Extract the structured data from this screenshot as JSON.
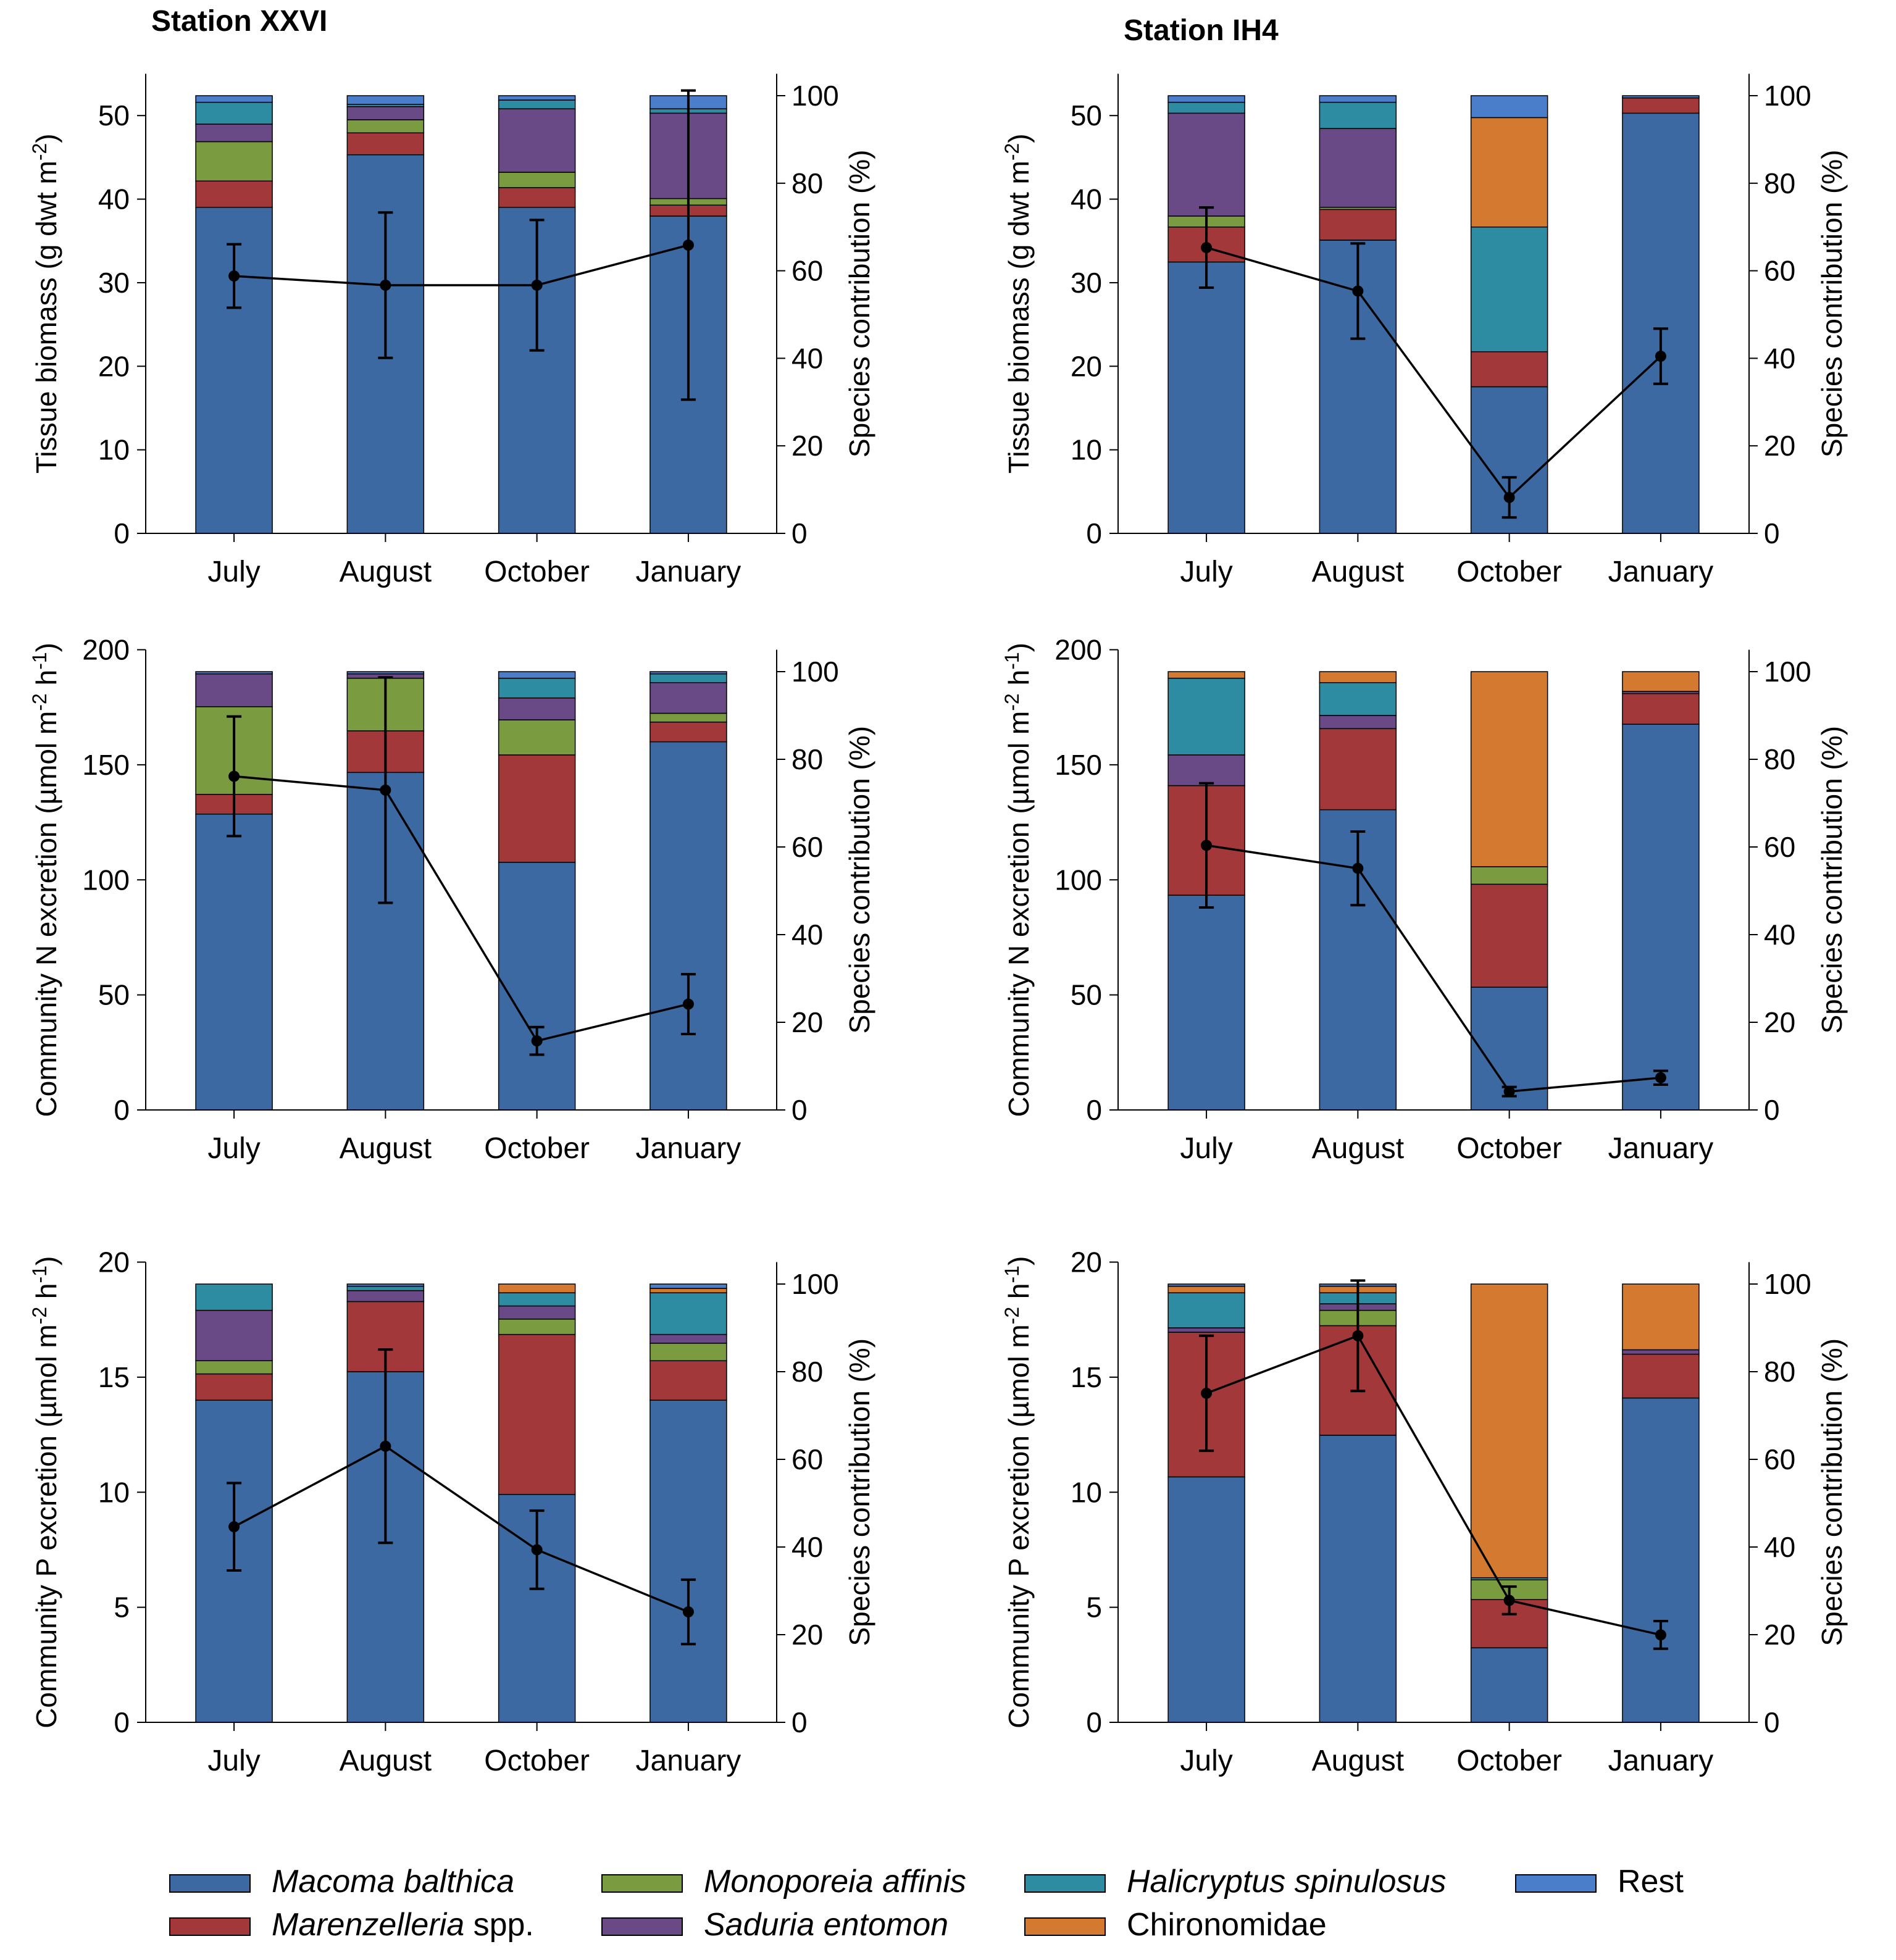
{
  "stations": [
    "Station XXVI",
    "Station IH4"
  ],
  "categories": [
    "July",
    "August",
    "October",
    "January"
  ],
  "y2_label": "Species contribution (%)",
  "y2_ticks": [
    0,
    20,
    40,
    60,
    80,
    100
  ],
  "legend": [
    {
      "name": "Macoma balthica",
      "italic": "Macoma balthica",
      "suffix": "",
      "color": "#3C69A1"
    },
    {
      "name": "Marenzelleria spp.",
      "italic": "Marenzelleria",
      "suffix": " spp.",
      "color": "#A3383A"
    },
    {
      "name": "Monoporeia affinis",
      "italic": "Monoporeia affinis",
      "suffix": "",
      "color": "#7A9B40"
    },
    {
      "name": "Saduria entomon",
      "italic": "Saduria entomon",
      "suffix": "",
      "color": "#694986"
    },
    {
      "name": "Halicryptus spinulosus",
      "italic": "Halicryptus spinulosus",
      "suffix": "",
      "color": "#2D8BA2"
    },
    {
      "name": "Chironomidae",
      "italic": "",
      "suffix": "Chironomidae",
      "color": "#D47A30"
    },
    {
      "name": "Rest",
      "italic": "",
      "suffix": "Rest",
      "color": "#4A7ECA"
    }
  ],
  "chart_data": [
    {
      "type": "bar",
      "station": "Station XXVI",
      "row": 0,
      "col": 0,
      "ylabel": "Tissue biomass (g dwt m-2)",
      "ylabel_parts": [
        [
          "Tissue biomass (g dwt m",
          ""
        ],
        [
          "-2",
          "sup"
        ],
        [
          ")",
          ""
        ]
      ],
      "ylim": [
        0,
        55
      ],
      "yticks": [
        0,
        10,
        20,
        30,
        40,
        50
      ],
      "y2lim": [
        0,
        105
      ],
      "categories": [
        "July",
        "August",
        "October",
        "January"
      ],
      "stacks_percent": [
        [
          74.5,
          6,
          9,
          4,
          5,
          0,
          1.5
        ],
        [
          86.5,
          5,
          3,
          3,
          0.5,
          0,
          2
        ],
        [
          74.5,
          4.5,
          3.5,
          14.5,
          2,
          0,
          1
        ],
        [
          72.5,
          2.5,
          1.5,
          19.5,
          1,
          0,
          3
        ]
      ],
      "line_values": [
        30.8,
        29.7,
        29.7,
        34.5
      ],
      "line_errors": [
        3.8,
        8.7,
        7.8,
        18.5
      ]
    },
    {
      "type": "bar",
      "station": "Station IH4",
      "row": 0,
      "col": 1,
      "ylabel": "Tissue biomass (g dwt m-2)",
      "ylabel_parts": [
        [
          "Tissue biomass (g dwt m",
          ""
        ],
        [
          "-2",
          "sup"
        ],
        [
          ")",
          ""
        ]
      ],
      "ylim": [
        0,
        55
      ],
      "yticks": [
        0,
        10,
        20,
        30,
        40,
        50
      ],
      "y2lim": [
        0,
        105
      ],
      "categories": [
        "July",
        "August",
        "October",
        "January"
      ],
      "stacks_percent": [
        [
          62,
          8,
          2.5,
          23.5,
          2.5,
          0,
          1.5
        ],
        [
          67,
          7,
          0.5,
          18,
          6,
          0,
          1.5
        ],
        [
          33.5,
          8,
          0,
          0,
          28.5,
          25,
          5
        ],
        [
          96,
          3.5,
          0,
          0,
          0,
          0,
          0.5
        ]
      ],
      "line_values": [
        34.2,
        29.0,
        4.3,
        21.2
      ],
      "line_errors": [
        4.8,
        5.7,
        2.4,
        3.3
      ]
    },
    {
      "type": "bar",
      "station": "Station XXVI",
      "row": 1,
      "col": 0,
      "ylabel": "Community N excretion (µmol m-2 h-1)",
      "ylabel_parts": [
        [
          "Community N excretion (µmol m",
          ""
        ],
        [
          "-2",
          "sup"
        ],
        [
          " h",
          ""
        ],
        [
          "-1",
          "sup"
        ],
        [
          ")",
          ""
        ]
      ],
      "ylim": [
        0,
        200
      ],
      "yticks": [
        0,
        50,
        100,
        150,
        200
      ],
      "y2lim": [
        0,
        105
      ],
      "categories": [
        "July",
        "August",
        "October",
        "January"
      ],
      "stacks_percent": [
        [
          67.5,
          4.5,
          20,
          7.5,
          0,
          0,
          0.5
        ],
        [
          77,
          9.5,
          12,
          1,
          0,
          0,
          0.5
        ],
        [
          56.5,
          24.5,
          8,
          5,
          4.5,
          0,
          1.5
        ],
        [
          84,
          4.5,
          2,
          7,
          2,
          0,
          0.5
        ]
      ],
      "line_values": [
        145,
        139,
        30,
        46
      ],
      "line_errors": [
        26,
        49,
        6,
        13
      ]
    },
    {
      "type": "bar",
      "station": "Station IH4",
      "row": 1,
      "col": 1,
      "ylabel": "Community N excretion (µmol m-2 h-1)",
      "ylabel_parts": [
        [
          "Community N excretion (µmol m",
          ""
        ],
        [
          "-2",
          "sup"
        ],
        [
          " h",
          ""
        ],
        [
          "-1",
          "sup"
        ],
        [
          ")",
          ""
        ]
      ],
      "ylim": [
        0,
        200
      ],
      "yticks": [
        0,
        50,
        100,
        150,
        200
      ],
      "y2lim": [
        0,
        105
      ],
      "categories": [
        "July",
        "August",
        "October",
        "January"
      ],
      "stacks_percent": [
        [
          49,
          25,
          0,
          7,
          17.5,
          1.5,
          0
        ],
        [
          68.5,
          18.5,
          0,
          3,
          7.5,
          2.5,
          0
        ],
        [
          28,
          23.5,
          4,
          0,
          0,
          44.5,
          0
        ],
        [
          88,
          7,
          0,
          0.5,
          0,
          4.5,
          0
        ]
      ],
      "line_values": [
        115,
        105,
        8,
        14
      ],
      "line_errors": [
        27,
        16,
        2,
        3
      ]
    },
    {
      "type": "bar",
      "station": "Station XXVI",
      "row": 2,
      "col": 0,
      "ylabel": "Community P excretion (µmol m-2 h-1)",
      "ylabel_parts": [
        [
          "Community P excretion (µmol m",
          ""
        ],
        [
          "-2",
          "sup"
        ],
        [
          " h",
          ""
        ],
        [
          "-1",
          "sup"
        ],
        [
          ")",
          ""
        ]
      ],
      "ylim": [
        0,
        20
      ],
      "yticks": [
        0,
        5,
        10,
        15,
        20
      ],
      "y2lim": [
        0,
        105
      ],
      "categories": [
        "July",
        "August",
        "October",
        "January"
      ],
      "stacks_percent": [
        [
          73.5,
          6,
          3,
          11.5,
          6,
          0,
          0
        ],
        [
          80,
          16,
          0,
          2.5,
          1,
          0,
          0.5
        ],
        [
          52,
          36.5,
          3.5,
          3,
          3,
          2,
          0
        ],
        [
          73.5,
          9,
          4,
          2,
          9.5,
          1,
          1
        ]
      ],
      "line_values": [
        8.5,
        12.0,
        7.5,
        4.8
      ],
      "line_errors": [
        1.9,
        4.2,
        1.7,
        1.4
      ]
    },
    {
      "type": "bar",
      "station": "Station IH4",
      "row": 2,
      "col": 1,
      "ylabel": "Community P excretion (µmol m-2 h-1)",
      "ylabel_parts": [
        [
          "Community P excretion (µmol m",
          ""
        ],
        [
          "-2",
          "sup"
        ],
        [
          " h",
          ""
        ],
        [
          "-1",
          "sup"
        ],
        [
          ")",
          ""
        ]
      ],
      "ylim": [
        0,
        20
      ],
      "yticks": [
        0,
        5,
        10,
        15,
        20
      ],
      "y2lim": [
        0,
        105
      ],
      "categories": [
        "July",
        "August",
        "October",
        "January"
      ],
      "stacks_percent": [
        [
          56,
          33,
          0,
          1,
          8,
          1.5,
          0.5
        ],
        [
          65.5,
          25,
          3.5,
          1.5,
          2.5,
          1.5,
          0.5
        ],
        [
          17,
          11,
          4.5,
          0,
          0.5,
          67,
          0
        ],
        [
          74,
          10,
          0,
          1,
          0,
          15,
          0
        ]
      ],
      "line_values": [
        14.3,
        16.8,
        5.3,
        3.8
      ],
      "line_errors": [
        2.5,
        2.4,
        0.6,
        0.6
      ]
    }
  ]
}
